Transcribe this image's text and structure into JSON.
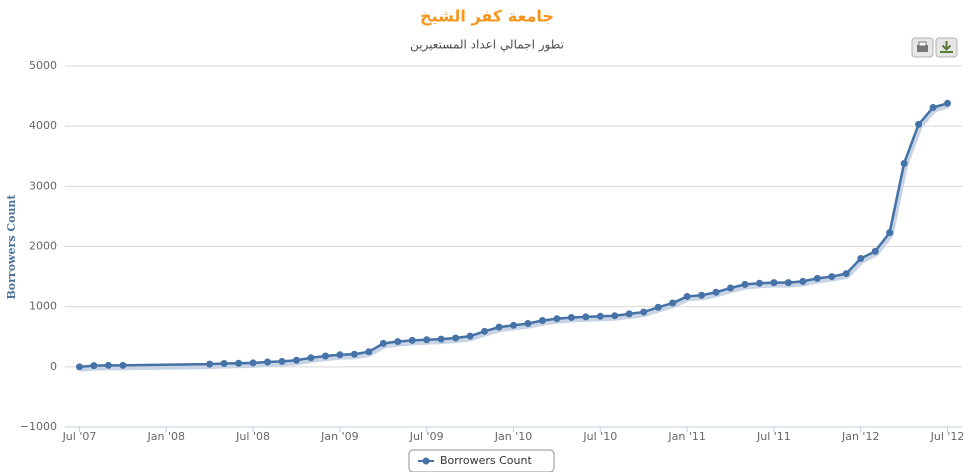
{
  "chart_data": {
    "type": "line",
    "title": "جامعة كفر الشيخ",
    "subtitle": "تطور اجمالي اعداد المستعيرين",
    "y_label": "Borrowers Count",
    "x": [
      "2007-07",
      "2007-08",
      "2007-09",
      "2007-10",
      "2008-04",
      "2008-05",
      "2008-06",
      "2008-07",
      "2008-08",
      "2008-09",
      "2008-10",
      "2008-11",
      "2008-12",
      "2009-01",
      "2009-02",
      "2009-03",
      "2009-04",
      "2009-05",
      "2009-06",
      "2009-07",
      "2009-08",
      "2009-09",
      "2009-10",
      "2009-11",
      "2009-12",
      "2010-01",
      "2010-02",
      "2010-03",
      "2010-04",
      "2010-05",
      "2010-06",
      "2010-07",
      "2010-08",
      "2010-09",
      "2010-10",
      "2010-11",
      "2010-12",
      "2011-01",
      "2011-02",
      "2011-03",
      "2011-04",
      "2011-05",
      "2011-06",
      "2011-07",
      "2011-08",
      "2011-09",
      "2011-10",
      "2011-11",
      "2011-12",
      "2012-01",
      "2012-02",
      "2012-03",
      "2012-04",
      "2012-05",
      "2012-06",
      "2012-07"
    ],
    "series": [
      {
        "name": "Borrowers Count",
        "color": "#4572a7",
        "values": [
          0,
          20,
          25,
          25,
          45,
          55,
          60,
          65,
          80,
          90,
          110,
          150,
          180,
          200,
          210,
          250,
          390,
          420,
          440,
          450,
          460,
          480,
          510,
          590,
          660,
          690,
          720,
          770,
          800,
          820,
          830,
          840,
          850,
          880,
          910,
          990,
          1060,
          1170,
          1190,
          1240,
          1310,
          1370,
          1390,
          1400,
          1400,
          1420,
          1470,
          1500,
          1550,
          1800,
          1920,
          2230,
          3380,
          4030,
          4310,
          4380
        ]
      }
    ],
    "xlim": [
      "2007-06",
      "2012-08"
    ],
    "xticks": [
      {
        "value": "2007-07",
        "label": "Jul '07"
      },
      {
        "value": "2008-01",
        "label": "Jan '08"
      },
      {
        "value": "2008-07",
        "label": "Jul '08"
      },
      {
        "value": "2009-01",
        "label": "Jan '09"
      },
      {
        "value": "2009-07",
        "label": "Jul '09"
      },
      {
        "value": "2010-01",
        "label": "Jan '10"
      },
      {
        "value": "2010-07",
        "label": "Jul '10"
      },
      {
        "value": "2011-01",
        "label": "Jan '11"
      },
      {
        "value": "2011-07",
        "label": "Jul '11"
      },
      {
        "value": "2012-01",
        "label": "Jan '12"
      },
      {
        "value": "2012-07",
        "label": "Jul '12"
      }
    ],
    "ylim": [
      -1000,
      5000
    ],
    "yticks": [
      {
        "value": -1000,
        "label": "−1000"
      },
      0,
      1000,
      2000,
      3000,
      4000,
      5000
    ],
    "grid": true,
    "legend": "bottom"
  }
}
